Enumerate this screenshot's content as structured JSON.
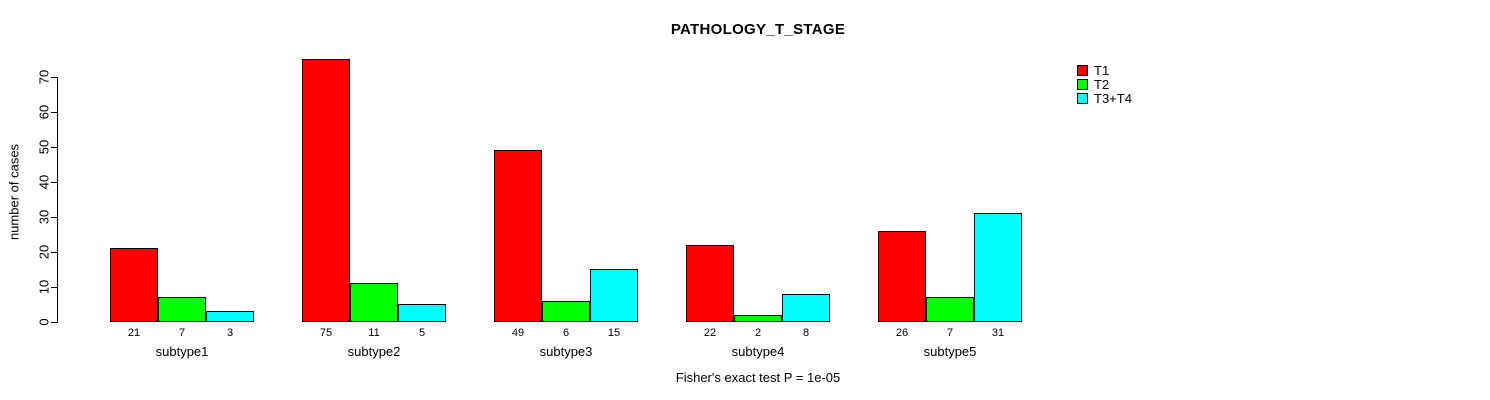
{
  "title": "PATHOLOGY_T_STAGE",
  "footer": "Fisher's exact test P = 1e-05",
  "y_axis": {
    "label": "number of cases",
    "ticks": [
      0,
      10,
      20,
      30,
      40,
      50,
      60,
      70
    ]
  },
  "legend": {
    "position": "top-right",
    "items": [
      {
        "label": "T1",
        "color": "#FF0000"
      },
      {
        "label": "T2",
        "color": "#00FF00"
      },
      {
        "label": "T3+T4",
        "color": "#00FFFF"
      }
    ]
  },
  "chart_data": {
    "type": "bar",
    "grouped": true,
    "title": "PATHOLOGY_T_STAGE",
    "xlabel": "",
    "ylabel": "number of cases",
    "ylim": [
      0,
      75
    ],
    "grid": false,
    "categories": [
      "subtype1",
      "subtype2",
      "subtype3",
      "subtype4",
      "subtype5"
    ],
    "series": [
      {
        "name": "T1",
        "color": "#FF0000",
        "values": [
          21,
          75,
          49,
          22,
          26
        ]
      },
      {
        "name": "T2",
        "color": "#00FF00",
        "values": [
          7,
          11,
          6,
          2,
          7
        ]
      },
      {
        "name": "T3+T4",
        "color": "#00FFFF",
        "values": [
          3,
          5,
          15,
          8,
          31
        ]
      }
    ],
    "bar_value_labels_shown": true,
    "annotation": "Fisher's exact test P = 1e-05"
  }
}
